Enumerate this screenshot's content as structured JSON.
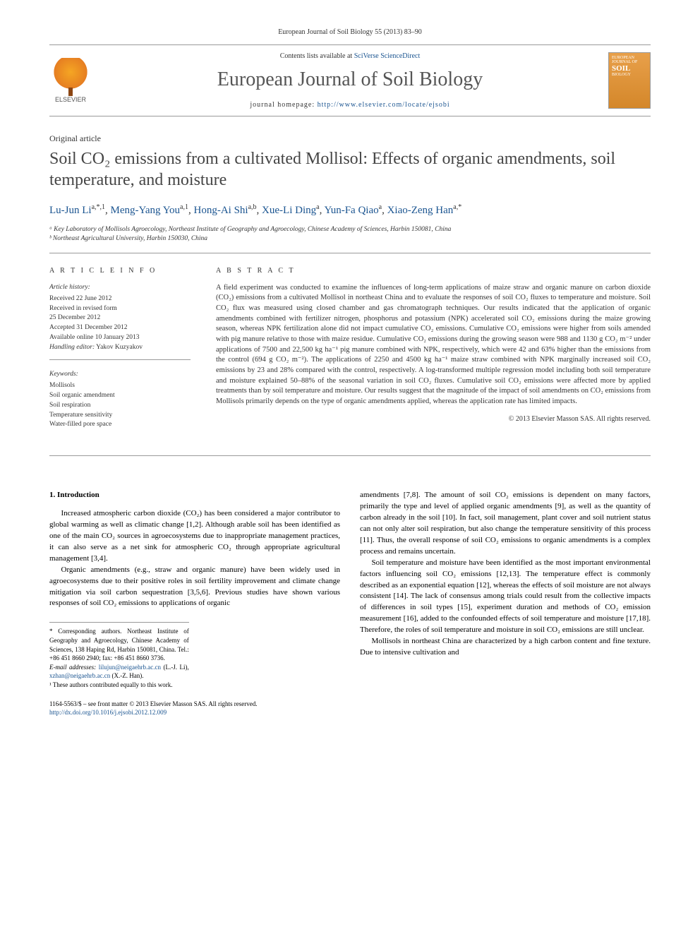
{
  "citation": "European Journal of Soil Biology 55 (2013) 83–90",
  "masthead": {
    "contents_prefix": "Contents lists available at ",
    "contents_link": "SciVerse ScienceDirect",
    "journal_title": "European Journal of Soil Biology",
    "homepage_prefix": "journal homepage: ",
    "homepage_url": "http://www.elsevier.com/locate/ejsobi",
    "publisher_name": "ELSEVIER",
    "cover_label_top": "EUROPEAN JOURNAL OF",
    "cover_label_main": "SOIL",
    "cover_label_sub": "BIOLOGY"
  },
  "article_type": "Original article",
  "title": "Soil CO₂ emissions from a cultivated Mollisol: Effects of organic amendments, soil temperature, and moisture",
  "authors": [
    {
      "name": "Lu-Jun Li",
      "marks": "a,*,1"
    },
    {
      "name": "Meng-Yang You",
      "marks": "a,1"
    },
    {
      "name": "Hong-Ai Shi",
      "marks": "a,b"
    },
    {
      "name": "Xue-Li Ding",
      "marks": "a"
    },
    {
      "name": "Yun-Fa Qiao",
      "marks": "a"
    },
    {
      "name": "Xiao-Zeng Han",
      "marks": "a,*"
    }
  ],
  "affiliations": [
    "ᵃ Key Laboratory of Mollisols Agroecology, Northeast Institute of Geography and Agroecology, Chinese Academy of Sciences, Harbin 150081, China",
    "ᵇ Northeast Agricultural University, Harbin 150030, China"
  ],
  "article_info": {
    "heading": "A R T I C L E   I N F O",
    "history_label": "Article history:",
    "history": [
      "Received 22 June 2012",
      "Received in revised form",
      "25 December 2012",
      "Accepted 31 December 2012",
      "Available online 10 January 2013"
    ],
    "handling_editor_label": "Handling editor:",
    "handling_editor": "Yakov Kuzyakov",
    "keywords_label": "Keywords:",
    "keywords": [
      "Mollisols",
      "Soil organic amendment",
      "Soil respiration",
      "Temperature sensitivity",
      "Water-filled pore space"
    ]
  },
  "abstract": {
    "heading": "A B S T R A C T",
    "text": "A field experiment was conducted to examine the influences of long-term applications of maize straw and organic manure on carbon dioxide (CO₂) emissions from a cultivated Mollisol in northeast China and to evaluate the responses of soil CO₂ fluxes to temperature and moisture. Soil CO₂ flux was measured using closed chamber and gas chromatograph techniques. Our results indicated that the application of organic amendments combined with fertilizer nitrogen, phosphorus and potassium (NPK) accelerated soil CO₂ emissions during the maize growing season, whereas NPK fertilization alone did not impact cumulative CO₂ emissions. Cumulative CO₂ emissions were higher from soils amended with pig manure relative to those with maize residue. Cumulative CO₂ emissions during the growing season were 988 and 1130 g CO₂ m⁻² under applications of 7500 and 22,500 kg ha⁻¹ pig manure combined with NPK, respectively, which were 42 and 63% higher than the emissions from the control (694 g CO₂ m⁻²). The applications of 2250 and 4500 kg ha⁻¹ maize straw combined with NPK marginally increased soil CO₂ emissions by 23 and 28% compared with the control, respectively. A log-transformed multiple regression model including both soil temperature and moisture explained 50–88% of the seasonal variation in soil CO₂ fluxes. Cumulative soil CO₂ emissions were affected more by applied treatments than by soil temperature and moisture. Our results suggest that the magnitude of the impact of soil amendments on CO₂ emissions from Mollisols primarily depends on the type of organic amendments applied, whereas the application rate has limited impacts.",
    "copyright": "© 2013 Elsevier Masson SAS. All rights reserved."
  },
  "body": {
    "section_heading": "1. Introduction",
    "col1_p1": "Increased atmospheric carbon dioxide (CO₂) has been considered a major contributor to global warming as well as climatic change [1,2]. Although arable soil has been identified as one of the main CO₂ sources in agroecosystems due to inappropriate management practices, it can also serve as a net sink for atmospheric CO₂ through appropriate agricultural management [3,4].",
    "col1_p2": "Organic amendments (e.g., straw and organic manure) have been widely used in agroecosystems due to their positive roles in soil fertility improvement and climate change mitigation via soil carbon sequestration [3,5,6]. Previous studies have shown various responses of soil CO₂ emissions to applications of organic",
    "col2_p1": "amendments [7,8]. The amount of soil CO₂ emissions is dependent on many factors, primarily the type and level of applied organic amendments [9], as well as the quantity of carbon already in the soil [10]. In fact, soil management, plant cover and soil nutrient status can not only alter soil respiration, but also change the temperature sensitivity of this process [11]. Thus, the overall response of soil CO₂ emissions to organic amendments is a complex process and remains uncertain.",
    "col2_p2": "Soil temperature and moisture have been identified as the most important environmental factors influencing soil CO₂ emissions [12,13]. The temperature effect is commonly described as an exponential equation [12], whereas the effects of soil moisture are not always consistent [14]. The lack of consensus among trials could result from the collective impacts of differences in soil types [15], experiment duration and methods of CO₂ emission measurement [16], added to the confounded effects of soil temperature and moisture [17,18]. Therefore, the roles of soil temperature and moisture in soil CO₂ emissions are still unclear.",
    "col2_p3": "Mollisols in northeast China are characterized by a high carbon content and fine texture. Due to intensive cultivation and"
  },
  "footnotes": {
    "corr": "* Corresponding authors. Northeast Institute of Geography and Agroecology, Chinese Academy of Sciences, 138 Haping Rd, Harbin 150081, China. Tel.: +86 451 8660 2940; fax: +86 451 8660 3736.",
    "emails_label": "E-mail addresses:",
    "email1": "lilujun@neigaehrb.ac.cn",
    "email1_who": " (L.-J. Li), ",
    "email2": "xzhan@neigaehrb.ac.cn",
    "email2_who": " (X.-Z. Han).",
    "equal": "¹ These authors contributed equally to this work."
  },
  "copyright_footer": {
    "line1": "1164-5563/$ – see front matter © 2013 Elsevier Masson SAS. All rights reserved.",
    "doi": "http://dx.doi.org/10.1016/j.ejsobi.2012.12.009"
  },
  "colors": {
    "link": "#1a5490",
    "text": "#333333",
    "title_gray": "#454545",
    "rule": "#999999"
  }
}
